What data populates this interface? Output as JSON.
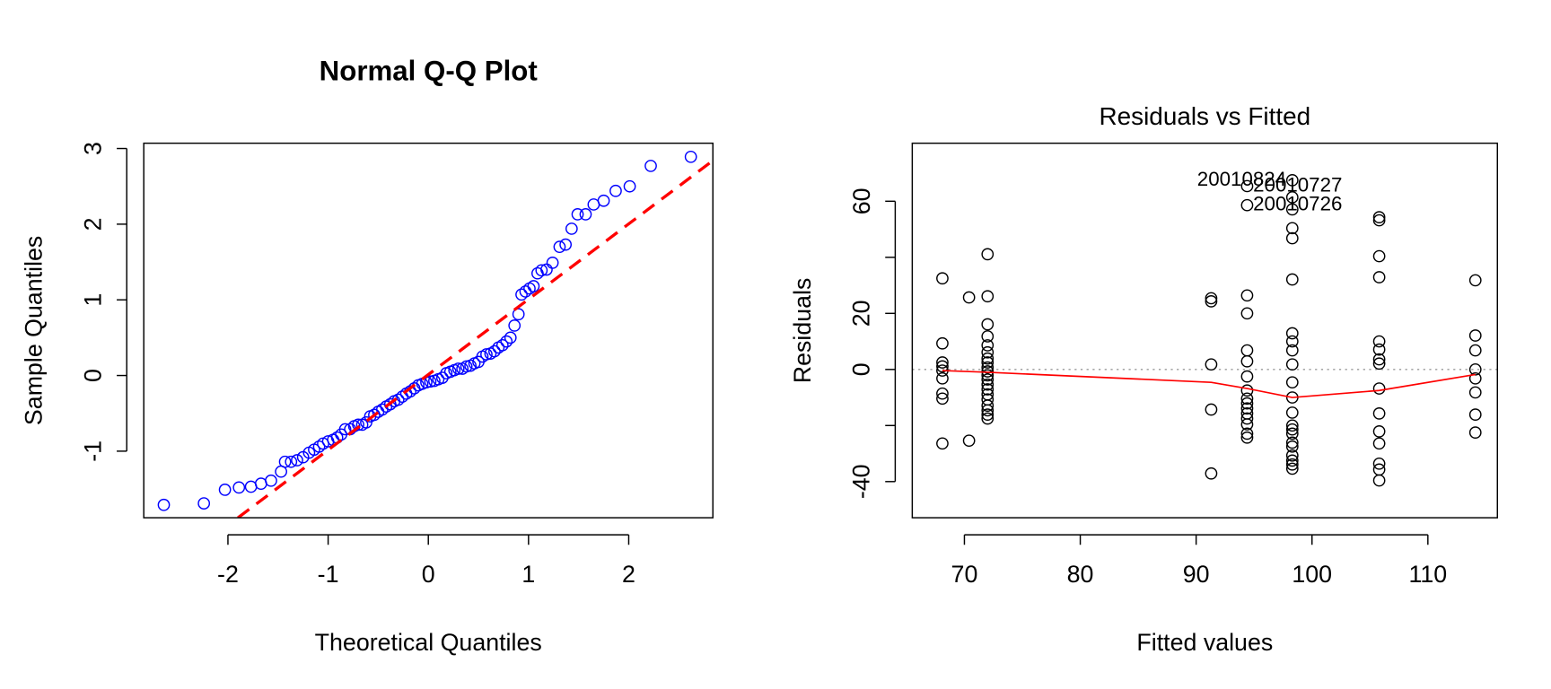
{
  "chart_data": [
    {
      "type": "scatter",
      "title": "Normal Q-Q Plot",
      "x_label": "Theoretical Quantiles",
      "y_label": "Sample Quantiles",
      "xlim": [
        -2.84,
        2.84
      ],
      "ylim": [
        -1.88,
        3.07
      ],
      "xticks": [
        -2,
        -1,
        0,
        1,
        2
      ],
      "yticks": [
        -1,
        0,
        1,
        2,
        3
      ],
      "color": "#0000ff",
      "title_bold": true,
      "x": [
        -2.64,
        -2.24,
        -2.03,
        -1.89,
        -1.77,
        -1.67,
        -1.57,
        -1.47,
        -1.43,
        -1.37,
        -1.31,
        -1.25,
        -1.19,
        -1.14,
        -1.09,
        -1.05,
        -1.0,
        -0.95,
        -0.91,
        -0.87,
        -0.83,
        -0.78,
        -0.74,
        -0.7,
        -0.66,
        -0.62,
        -0.58,
        -0.54,
        -0.5,
        -0.46,
        -0.42,
        -0.38,
        -0.34,
        -0.3,
        -0.26,
        -0.22,
        -0.18,
        -0.14,
        -0.1,
        -0.06,
        -0.02,
        0.02,
        0.06,
        0.1,
        0.14,
        0.18,
        0.22,
        0.26,
        0.3,
        0.34,
        0.38,
        0.42,
        0.46,
        0.5,
        0.54,
        0.58,
        0.62,
        0.66,
        0.7,
        0.74,
        0.78,
        0.82,
        0.86,
        0.9,
        0.93,
        0.97,
        1.01,
        1.05,
        1.09,
        1.13,
        1.18,
        1.24,
        1.31,
        1.37,
        1.43,
        1.49,
        1.57,
        1.65,
        1.75,
        1.87,
        2.01,
        2.22,
        2.62
      ],
      "y": [
        -1.71,
        -1.69,
        -1.51,
        -1.48,
        -1.47,
        -1.43,
        -1.39,
        -1.27,
        -1.14,
        -1.14,
        -1.12,
        -1.08,
        -1.02,
        -0.98,
        -0.94,
        -0.9,
        -0.87,
        -0.85,
        -0.82,
        -0.78,
        -0.71,
        -0.71,
        -0.67,
        -0.65,
        -0.65,
        -0.62,
        -0.54,
        -0.52,
        -0.48,
        -0.45,
        -0.41,
        -0.38,
        -0.34,
        -0.32,
        -0.28,
        -0.24,
        -0.21,
        -0.17,
        -0.13,
        -0.11,
        -0.09,
        -0.08,
        -0.07,
        -0.05,
        -0.03,
        0.03,
        0.05,
        0.07,
        0.09,
        0.09,
        0.12,
        0.13,
        0.16,
        0.18,
        0.25,
        0.28,
        0.29,
        0.32,
        0.37,
        0.4,
        0.45,
        0.5,
        0.66,
        0.81,
        1.07,
        1.11,
        1.15,
        1.18,
        1.35,
        1.39,
        1.4,
        1.49,
        1.7,
        1.73,
        1.94,
        2.13,
        2.13,
        2.26,
        2.31,
        2.44,
        2.5,
        2.77,
        2.89
      ],
      "reference_line": {
        "x": [
          -1.9,
          2.84
        ],
        "y": [
          -1.88,
          2.84
        ],
        "color": "#ff0000",
        "dashed": true
      }
    },
    {
      "type": "scatter",
      "title": "Residuals vs Fitted",
      "x_label": "Fitted values",
      "y_label": "Residuals",
      "xlim": [
        65.5,
        116.0
      ],
      "ylim": [
        -52.9,
        80.7
      ],
      "xticks": [
        70,
        80,
        90,
        100,
        110
      ],
      "yticks": [
        -40,
        {
          "value": -20,
          "label": null
        },
        0,
        20,
        {
          "value": 40,
          "label": null
        },
        60
      ],
      "color": "#000000",
      "title_bold": false,
      "hline": 0,
      "x": [
        68.1,
        68.1,
        68.1,
        68.1,
        68.1,
        68.1,
        68.1,
        68.1,
        68.1,
        70.4,
        70.4,
        72,
        72,
        72,
        72,
        72,
        72,
        72,
        72,
        72,
        72,
        72,
        72,
        72,
        72,
        72,
        72,
        72,
        72,
        72,
        72,
        91.3,
        91.3,
        91.3,
        91.3,
        91.3,
        94.4,
        94.4,
        94.4,
        94.4,
        94.4,
        94.4,
        94.4,
        94.4,
        94.4,
        94.4,
        94.4,
        94.4,
        94.4,
        94.4,
        94.4,
        94.4,
        98.3,
        98.3,
        98.3,
        98.3,
        98.3,
        98.3,
        98.3,
        98.3,
        98.3,
        98.3,
        98.3,
        98.3,
        98.3,
        98.3,
        98.3,
        98.3,
        98.3,
        98.3,
        98.3,
        98.3,
        98.3,
        98.3,
        105.8,
        105.8,
        105.8,
        105.8,
        105.8,
        105.8,
        105.8,
        105.8,
        105.8,
        105.8,
        105.8,
        105.8,
        105.8,
        105.8,
        105.8,
        114.1,
        114.1,
        114.1,
        114.1,
        114.1,
        114.1,
        114.1,
        114.1
      ],
      "y": [
        32.5,
        9.3,
        2.5,
        1.1,
        -0.4,
        -3.2,
        -8.6,
        -10.4,
        -26.4,
        25.7,
        -25.4,
        41.1,
        26.1,
        16.1,
        11.8,
        8.6,
        6.1,
        3.9,
        2.5,
        0.7,
        -0.7,
        -2.1,
        -3.6,
        -5.4,
        -7.1,
        -8.9,
        -10.7,
        -12.9,
        -14.6,
        -16.1,
        -17.5,
        25.4,
        24.3,
        1.8,
        -14.3,
        -37.1,
        65.4,
        58.6,
        26.4,
        20.0,
        6.8,
        2.9,
        -2.5,
        -7.5,
        -10.4,
        -12.1,
        -13.9,
        -15.7,
        -17.5,
        -19.6,
        -22.9,
        -24.3,
        67.5,
        61.4,
        57.1,
        50.4,
        46.8,
        32.1,
        12.9,
        10.0,
        6.8,
        1.8,
        -4.6,
        -10.0,
        -15.4,
        -20.0,
        -21.4,
        -22.9,
        -26.1,
        -27.5,
        -30.7,
        -32.5,
        -33.9,
        -35.4,
        54.3,
        53.2,
        40.4,
        32.9,
        10.0,
        7.1,
        3.6,
        2.1,
        -6.8,
        -15.7,
        -22.1,
        -26.4,
        -33.6,
        -35.7,
        -39.6,
        31.8,
        12.1,
        6.8,
        0,
        -3.2,
        -8.2,
        -16.1,
        -22.5
      ],
      "point_labels": [
        null,
        null,
        null,
        null,
        null,
        null,
        null,
        null,
        null,
        null,
        null,
        null,
        null,
        null,
        null,
        null,
        null,
        null,
        null,
        null,
        null,
        null,
        null,
        null,
        null,
        null,
        null,
        null,
        null,
        null,
        null,
        null,
        null,
        null,
        null,
        null,
        "20010727",
        "20010726",
        null,
        null,
        null,
        null,
        null,
        null,
        null,
        null,
        null,
        null,
        null,
        null,
        null,
        null,
        "20010824",
        null,
        null,
        null,
        null,
        null,
        null,
        null,
        null,
        null,
        null,
        null,
        null,
        null,
        null,
        null,
        null,
        null,
        null,
        null,
        null,
        null,
        null,
        null,
        null,
        null,
        null,
        null,
        null,
        null,
        null,
        null,
        null,
        null,
        null,
        null,
        null,
        null,
        null,
        null,
        null,
        null,
        null,
        null,
        null
      ],
      "smooth": {
        "x": [
          68.1,
          72.0,
          91.3,
          94.4,
          98.3,
          105.8,
          114.1
        ],
        "y": [
          -0.4,
          -1.0,
          -4.6,
          -6.8,
          -10.0,
          -7.5,
          -1.8
        ],
        "color": "#ff0000"
      }
    }
  ]
}
